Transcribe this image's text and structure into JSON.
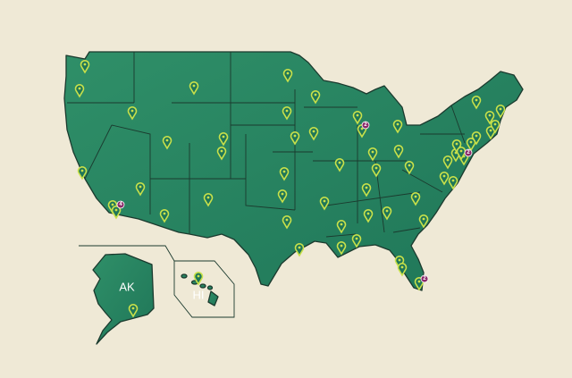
{
  "labels": {
    "alaska": "AK",
    "hawaii": "HI"
  },
  "clusters": [
    {
      "count": 2
    },
    {
      "count": 4
    },
    {
      "count": 2
    },
    {
      "count": 2
    }
  ]
}
